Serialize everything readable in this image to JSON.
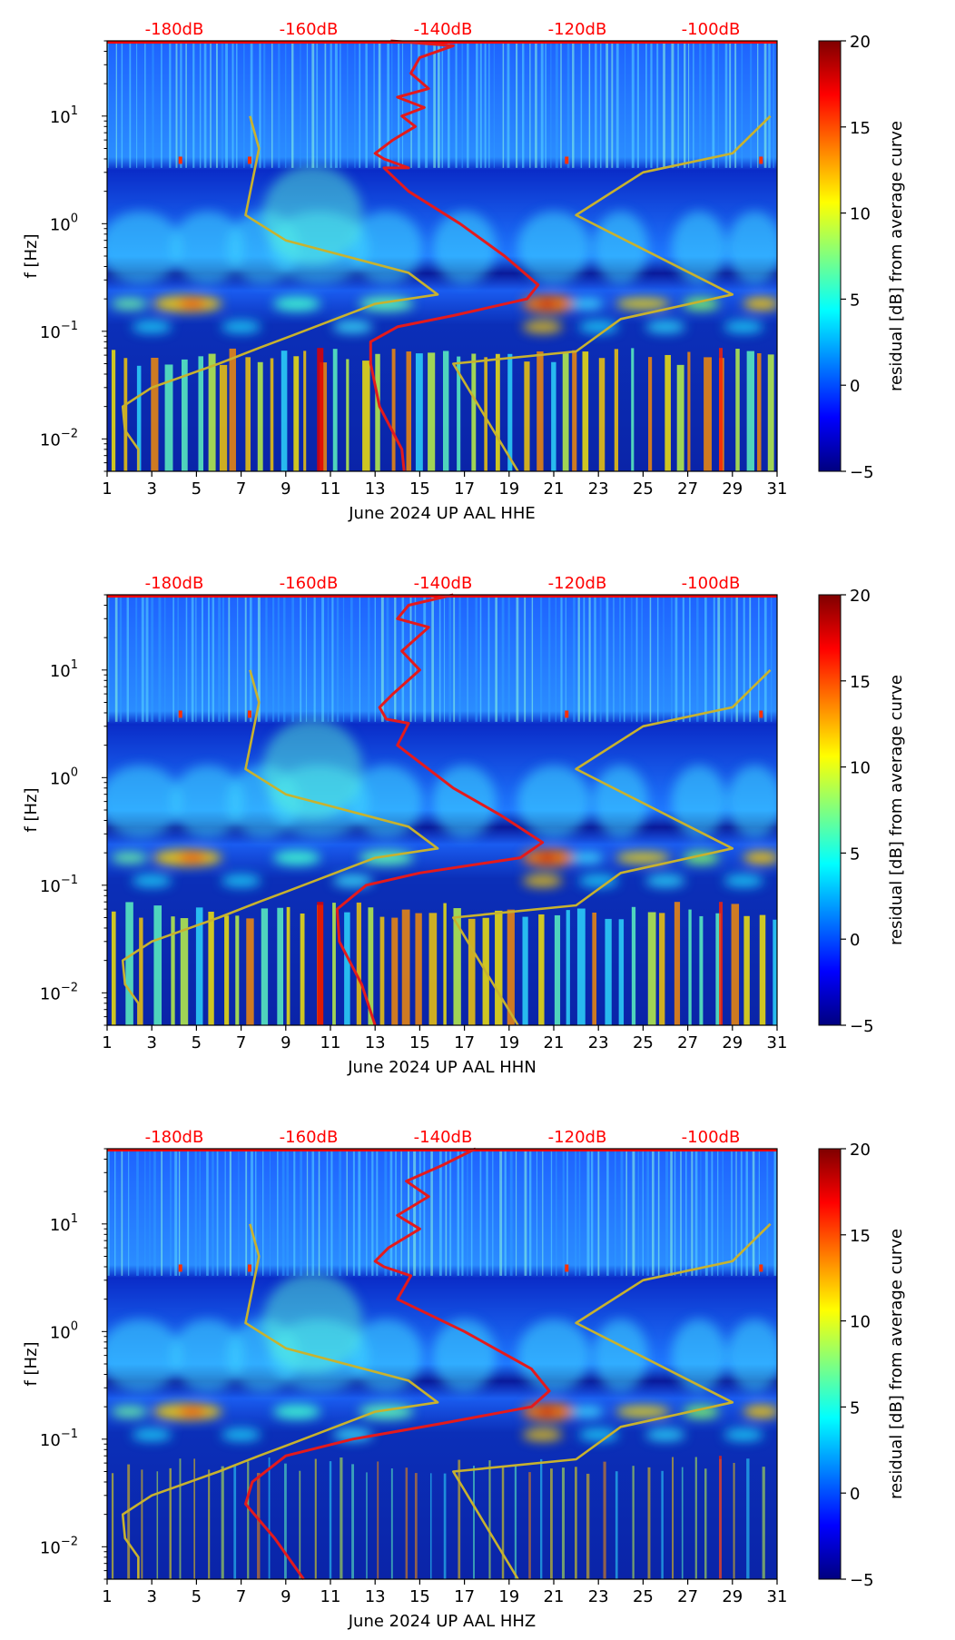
{
  "chart_data": [
    {
      "type": "heatmap",
      "title": "",
      "xlabel": "June 2024 UP AAL  HHE",
      "ylabel": "f [Hz]",
      "x_ticks": [
        "1",
        "3",
        "5",
        "7",
        "9",
        "11",
        "13",
        "15",
        "17",
        "19",
        "21",
        "23",
        "25",
        "27",
        "29",
        "31"
      ],
      "xlim": [
        1,
        31
      ],
      "y_ticks": [
        {
          "exp": -2,
          "label": "10"
        },
        {
          "exp": -1,
          "label": "10"
        },
        {
          "exp": 0,
          "label": "10"
        },
        {
          "exp": 1,
          "label": "10"
        }
      ],
      "ylim": [
        0.005,
        50
      ],
      "top_labels": [
        "-180dB",
        "-160dB",
        "-140dB",
        "-120dB",
        "-100dB"
      ],
      "colorbar": {
        "label": "residual [dB] from average curve",
        "ticks": [
          "20",
          "15",
          "10",
          "5",
          "0",
          "−5"
        ],
        "range": [
          -5,
          20
        ]
      },
      "series": [
        {
          "name": "average PSD (red)",
          "points": [
            [
              13.7,
              50
            ],
            [
              16.5,
              45
            ],
            [
              15.0,
              35
            ],
            [
              14.6,
              25
            ],
            [
              15.4,
              18
            ],
            [
              14.0,
              15
            ],
            [
              15.2,
              12
            ],
            [
              14.2,
              10
            ],
            [
              14.8,
              8
            ],
            [
              13.8,
              6
            ],
            [
              13.0,
              4.5
            ],
            [
              13.4,
              4.0
            ],
            [
              14.5,
              3.3
            ],
            [
              13.4,
              3.3
            ],
            [
              14.5,
              2.0
            ],
            [
              16.8,
              1.0
            ],
            [
              18.8,
              0.5
            ],
            [
              20.3,
              0.27
            ],
            [
              19.8,
              0.2
            ],
            [
              16.5,
              0.14
            ],
            [
              14.0,
              0.11
            ],
            [
              12.8,
              0.08
            ],
            [
              12.8,
              0.05
            ],
            [
              13.2,
              0.02
            ],
            [
              14.2,
              0.008
            ],
            [
              14.3,
              0.005
            ]
          ]
        },
        {
          "name": "reference model (yellow)",
          "points": [
            [
              7.4,
              10
            ],
            [
              7.8,
              5
            ],
            [
              7.2,
              1.2
            ],
            [
              9.0,
              0.7
            ],
            [
              14.5,
              0.35
            ],
            [
              15.8,
              0.22
            ],
            [
              13.0,
              0.18
            ],
            [
              9.2,
              0.09
            ],
            [
              7.8,
              0.07
            ],
            [
              6.0,
              0.05
            ],
            [
              3.0,
              0.03
            ],
            [
              1.7,
              0.02
            ],
            [
              1.8,
              0.012
            ],
            [
              2.4,
              0.008
            ],
            [
              2.4,
              0.005
            ]
          ]
        },
        {
          "name": "reference model (yellow)",
          "points": [
            [
              30.7,
              10
            ],
            [
              29.0,
              4.5
            ],
            [
              25.0,
              3.0
            ],
            [
              22.0,
              1.2
            ],
            [
              29.0,
              0.22
            ],
            [
              24.0,
              0.13
            ],
            [
              22.0,
              0.065
            ],
            [
              16.5,
              0.05
            ],
            [
              19.4,
              0.005
            ]
          ]
        }
      ]
    },
    {
      "type": "heatmap",
      "title": "",
      "xlabel": "June 2024 UP AAL  HHN",
      "ylabel": "f [Hz]",
      "x_ticks": [
        "1",
        "3",
        "5",
        "7",
        "9",
        "11",
        "13",
        "15",
        "17",
        "19",
        "21",
        "23",
        "25",
        "27",
        "29",
        "31"
      ],
      "xlim": [
        1,
        31
      ],
      "y_ticks": [
        {
          "exp": -2,
          "label": "10"
        },
        {
          "exp": -1,
          "label": "10"
        },
        {
          "exp": 0,
          "label": "10"
        },
        {
          "exp": 1,
          "label": "10"
        }
      ],
      "ylim": [
        0.005,
        50
      ],
      "top_labels": [
        "-180dB",
        "-160dB",
        "-140dB",
        "-120dB",
        "-100dB"
      ],
      "colorbar": {
        "label": "residual [dB] from average curve",
        "ticks": [
          "20",
          "15",
          "10",
          "5",
          "0",
          "−5"
        ],
        "range": [
          -5,
          20
        ]
      },
      "series": [
        {
          "name": "average PSD (red)",
          "points": [
            [
              16.5,
              50
            ],
            [
              14.5,
              40
            ],
            [
              14.0,
              30
            ],
            [
              15.4,
              25
            ],
            [
              14.2,
              15
            ],
            [
              15.0,
              10
            ],
            [
              13.8,
              6
            ],
            [
              13.2,
              4.5
            ],
            [
              13.5,
              3.5
            ],
            [
              14.5,
              3.2
            ],
            [
              14.0,
              2.0
            ],
            [
              16.5,
              0.8
            ],
            [
              18.6,
              0.45
            ],
            [
              20.5,
              0.25
            ],
            [
              19.5,
              0.18
            ],
            [
              15.0,
              0.13
            ],
            [
              12.6,
              0.1
            ],
            [
              11.3,
              0.06
            ],
            [
              11.4,
              0.03
            ],
            [
              12.4,
              0.012
            ],
            [
              13.0,
              0.005
            ]
          ]
        },
        {
          "name": "reference model (yellow)",
          "points": [
            [
              7.4,
              10
            ],
            [
              7.8,
              5
            ],
            [
              7.2,
              1.2
            ],
            [
              9.0,
              0.7
            ],
            [
              14.5,
              0.35
            ],
            [
              15.8,
              0.22
            ],
            [
              13.0,
              0.18
            ],
            [
              9.2,
              0.09
            ],
            [
              7.8,
              0.07
            ],
            [
              6.0,
              0.05
            ],
            [
              3.0,
              0.03
            ],
            [
              1.7,
              0.02
            ],
            [
              1.8,
              0.012
            ],
            [
              2.4,
              0.008
            ],
            [
              2.4,
              0.005
            ]
          ]
        },
        {
          "name": "reference model (yellow)",
          "points": [
            [
              30.7,
              10
            ],
            [
              29.0,
              4.5
            ],
            [
              25.0,
              3.0
            ],
            [
              22.0,
              1.2
            ],
            [
              29.0,
              0.22
            ],
            [
              24.0,
              0.13
            ],
            [
              22.0,
              0.065
            ],
            [
              16.5,
              0.05
            ],
            [
              19.4,
              0.005
            ]
          ]
        }
      ]
    },
    {
      "type": "heatmap",
      "title": "",
      "xlabel": "June 2024 UP AAL  HHZ",
      "ylabel": "f [Hz]",
      "x_ticks": [
        "1",
        "3",
        "5",
        "7",
        "9",
        "11",
        "13",
        "15",
        "17",
        "19",
        "21",
        "23",
        "25",
        "27",
        "29",
        "31"
      ],
      "xlim": [
        1,
        31
      ],
      "y_ticks": [
        {
          "exp": -2,
          "label": "10"
        },
        {
          "exp": -1,
          "label": "10"
        },
        {
          "exp": 0,
          "label": "10"
        },
        {
          "exp": 1,
          "label": "10"
        }
      ],
      "ylim": [
        0.005,
        50
      ],
      "top_labels": [
        "-180dB",
        "-160dB",
        "-140dB",
        "-120dB",
        "-100dB"
      ],
      "colorbar": {
        "label": "residual [dB] from average curve",
        "ticks": [
          "20",
          "15",
          "10",
          "5",
          "0",
          "−5"
        ],
        "range": [
          -5,
          20
        ]
      },
      "series": [
        {
          "name": "average PSD (red)",
          "points": [
            [
              17.5,
              50
            ],
            [
              16.0,
              35
            ],
            [
              14.4,
              25
            ],
            [
              15.4,
              18
            ],
            [
              14.0,
              12
            ],
            [
              15.0,
              9
            ],
            [
              13.6,
              6
            ],
            [
              13.0,
              4.5
            ],
            [
              13.4,
              4.0
            ],
            [
              14.6,
              3.3
            ],
            [
              14.0,
              2.0
            ],
            [
              17.0,
              1.0
            ],
            [
              20.0,
              0.45
            ],
            [
              20.8,
              0.28
            ],
            [
              20.0,
              0.2
            ],
            [
              16.0,
              0.14
            ],
            [
              12.0,
              0.1
            ],
            [
              9.0,
              0.07
            ],
            [
              7.5,
              0.04
            ],
            [
              7.2,
              0.025
            ],
            [
              8.5,
              0.012
            ],
            [
              9.8,
              0.005
            ]
          ]
        },
        {
          "name": "reference model (yellow)",
          "points": [
            [
              7.4,
              10
            ],
            [
              7.8,
              5
            ],
            [
              7.2,
              1.2
            ],
            [
              9.0,
              0.7
            ],
            [
              14.5,
              0.35
            ],
            [
              15.8,
              0.22
            ],
            [
              13.0,
              0.18
            ],
            [
              9.2,
              0.09
            ],
            [
              7.8,
              0.07
            ],
            [
              6.0,
              0.05
            ],
            [
              3.0,
              0.03
            ],
            [
              1.7,
              0.02
            ],
            [
              1.8,
              0.012
            ],
            [
              2.4,
              0.008
            ],
            [
              2.4,
              0.005
            ]
          ]
        },
        {
          "name": "reference model (yellow)",
          "points": [
            [
              30.7,
              10
            ],
            [
              29.0,
              4.5
            ],
            [
              25.0,
              3.0
            ],
            [
              22.0,
              1.2
            ],
            [
              29.0,
              0.22
            ],
            [
              24.0,
              0.13
            ],
            [
              22.0,
              0.065
            ],
            [
              16.5,
              0.05
            ],
            [
              19.4,
              0.005
            ]
          ]
        }
      ]
    }
  ],
  "colors": {
    "average_curve": "#e41a1c",
    "reference_curve": "#c8b22e",
    "top_labels": "#ff0000"
  }
}
